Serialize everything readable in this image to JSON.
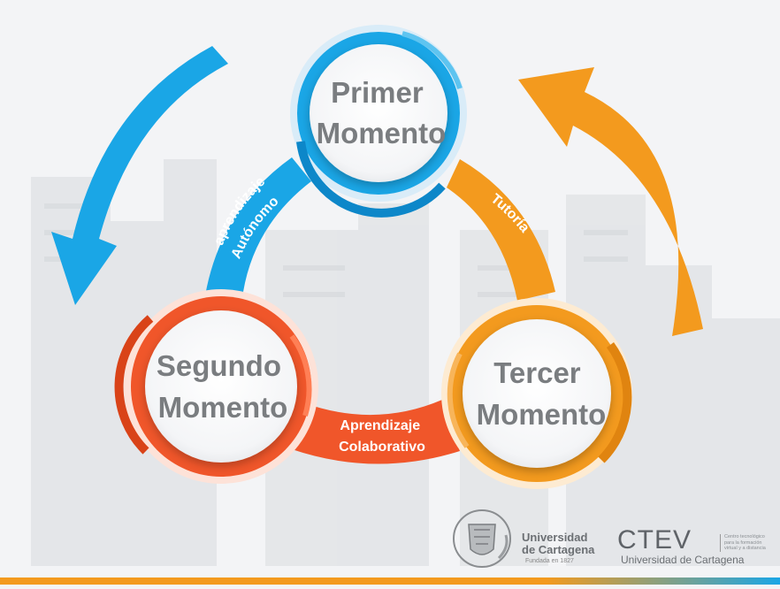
{
  "diagram": {
    "moments": {
      "first": {
        "line1": "Primer",
        "line2": "Momento"
      },
      "second": {
        "line1": "Segundo",
        "line2": "Momento"
      },
      "third": {
        "line1": "Tercer",
        "line2": "Momento"
      }
    },
    "connectors": {
      "autonomous": {
        "line1": "aprendizaje",
        "line2": "Autónomo"
      },
      "tutoring": {
        "line1": "Tutoría"
      },
      "collaborative": {
        "line1": "Aprendizaje",
        "line2": "Colaborativo"
      }
    }
  },
  "logos": {
    "university": {
      "line1": "Universidad",
      "line2": "de Cartagena",
      "tagline": "Fundada en 1827"
    },
    "ctev": {
      "mark": "CTEV",
      "desc_line1": "Centro tecnológico",
      "desc_line2": "para la formación",
      "desc_line3": "virtual y a distancia",
      "subtitle": "Universidad de Cartagena"
    }
  },
  "colors": {
    "blue": "#1aa6e6",
    "blue_dark": "#0d87c9",
    "orange": "#f39a1e",
    "red": "#f0562a",
    "text_gray": "#7a7d80"
  }
}
